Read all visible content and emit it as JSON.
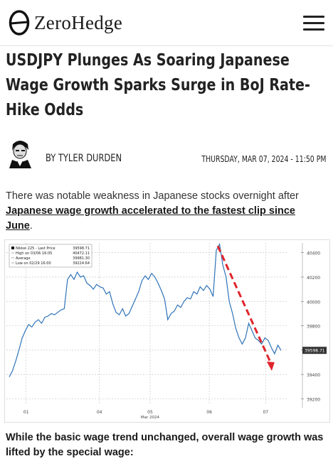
{
  "site": {
    "name": "ZeroHedge"
  },
  "article": {
    "title": "USDJPY Plunges As Soaring Japanese Wage Growth Sparks Surge in BoJ Rate-Hike Odds",
    "author": "BY TYLER DURDEN",
    "date": "THURSDAY, MAR 07, 2024 - 11:50 PM",
    "intro": "There was notable weakness in Japanese stocks overnight after",
    "intro_link": "Japanese wage growth accelerated to the fastest clip since June",
    "intro_end": ".",
    "para2": "While the basic wage trend unchanged, overall wage growth was lifted by the special wage:"
  },
  "chart_data": {
    "type": "line",
    "legend": {
      "rows": [
        {
          "label": "Nikkei 225 - Last Price",
          "value": "39598.71"
        },
        {
          "label": "High on 03/06 16:05",
          "value": "40472.11"
        },
        {
          "label": "Average",
          "value": "39981.30"
        },
        {
          "label": "Low on 02/29 16:00",
          "value": "39224.64"
        }
      ]
    },
    "x_ticks": [
      "01",
      "04",
      "05",
      "06",
      "07"
    ],
    "x_sublabel": "Mar 2024",
    "y_ticks": [
      39200,
      39400,
      39600,
      39800,
      40000,
      40200,
      40400
    ],
    "ylim": [
      39150,
      40480
    ],
    "last_value_label": "39598.71",
    "series": [
      {
        "values": [
          39380,
          39430,
          39510,
          39600,
          39700,
          39760,
          39810,
          39790,
          39830,
          39850,
          39820,
          39870,
          39880,
          39900,
          39890,
          39910,
          39930,
          39940,
          40180,
          40220,
          40180,
          40240,
          40200,
          40210,
          40150,
          40130,
          40100,
          40140,
          40120,
          40110,
          40060,
          40080,
          39980,
          39910,
          39890,
          39940,
          39880,
          39900,
          39960,
          40020,
          40080,
          40170,
          40210,
          40180,
          40230,
          40200,
          40150,
          40090,
          40020,
          39850,
          39900,
          39920,
          39970,
          39950,
          40000,
          40030,
          40020,
          40080,
          40060,
          40120,
          40090,
          40130,
          40100,
          40040,
          40420,
          40470,
          40300,
          40200,
          40000,
          39900,
          39780,
          39700,
          39650,
          39700,
          39820,
          39760,
          39700,
          39680,
          39650,
          39700,
          39680,
          39620,
          39570,
          39640,
          39598
        ]
      }
    ],
    "colors": {
      "line": "#2e73b8",
      "arrow": "#e0242c"
    }
  }
}
